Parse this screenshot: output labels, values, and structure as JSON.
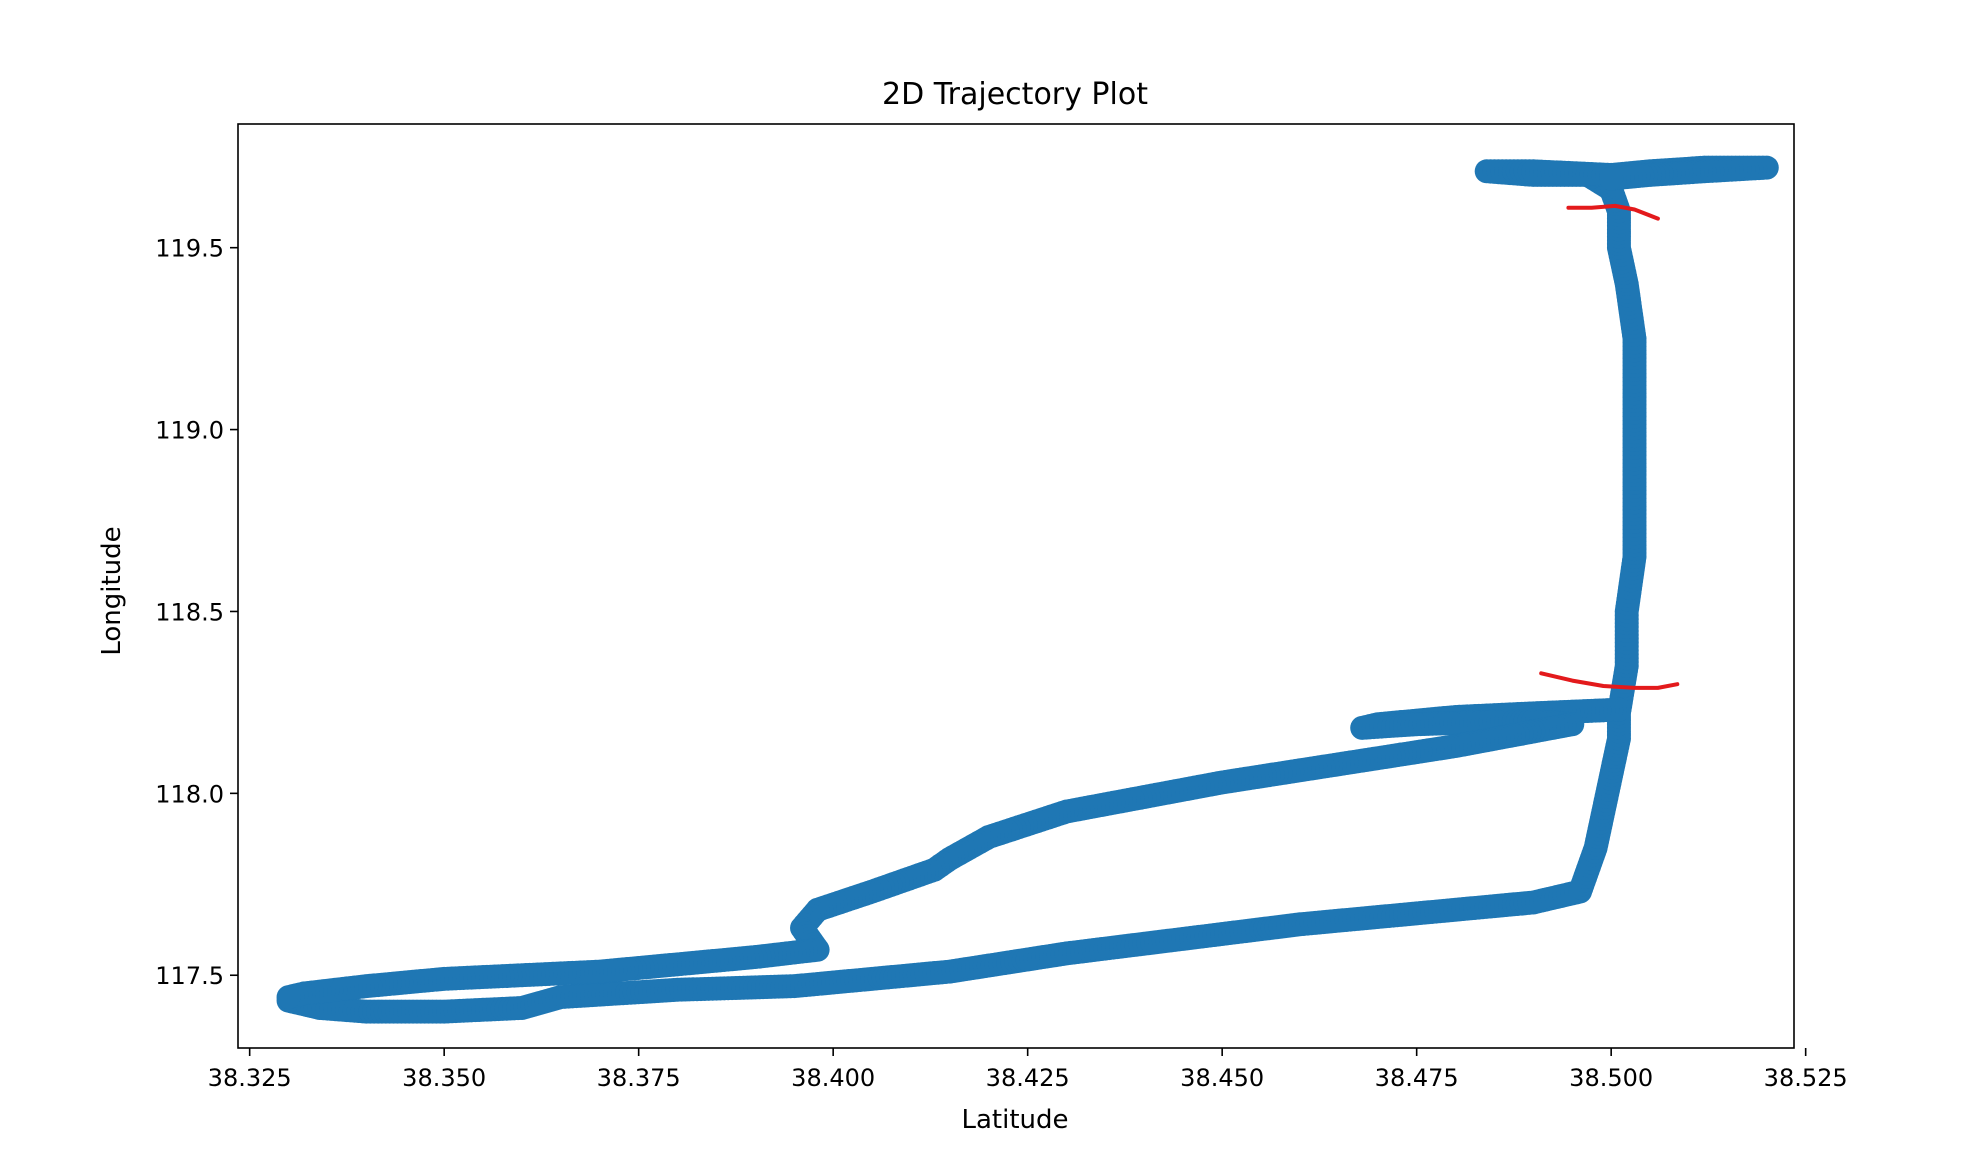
{
  "chart_data": {
    "type": "scatter",
    "title": "2D Trajectory Plot",
    "xlabel": "Latitude",
    "ylabel": "Longitude",
    "xlim": [
      38.3235,
      38.5235
    ],
    "ylim": [
      117.3,
      119.84
    ],
    "x_ticks": [
      "38.325",
      "38.350",
      "38.375",
      "38.400",
      "38.425",
      "38.450",
      "38.475",
      "38.500",
      "38.525"
    ],
    "y_ticks": [
      "117.5",
      "118.0",
      "118.5",
      "119.0",
      "119.5"
    ],
    "grid": false,
    "marker_color": "#1f77b4",
    "annotation_color": "#e31a1c",
    "series": [
      {
        "points": [
          [
            38.33,
            117.43
          ],
          [
            38.334,
            117.41
          ],
          [
            38.34,
            117.4
          ],
          [
            38.35,
            117.4
          ],
          [
            38.36,
            117.41
          ],
          [
            38.365,
            117.44
          ],
          [
            38.38,
            117.46
          ],
          [
            38.395,
            117.47
          ],
          [
            38.4,
            117.48
          ],
          [
            38.415,
            117.51
          ],
          [
            38.43,
            117.56
          ],
          [
            38.445,
            117.6
          ],
          [
            38.46,
            117.64
          ],
          [
            38.475,
            117.67
          ],
          [
            38.49,
            117.7
          ],
          [
            38.496,
            117.73
          ],
          [
            38.498,
            117.85
          ],
          [
            38.499,
            117.95
          ],
          [
            38.5,
            118.05
          ],
          [
            38.501,
            118.15
          ],
          [
            38.501,
            118.22
          ],
          [
            38.502,
            118.35
          ],
          [
            38.502,
            118.5
          ],
          [
            38.503,
            118.65
          ],
          [
            38.503,
            118.8
          ],
          [
            38.503,
            118.95
          ],
          [
            38.503,
            119.1
          ],
          [
            38.503,
            119.25
          ],
          [
            38.502,
            119.4
          ],
          [
            38.501,
            119.5
          ],
          [
            38.501,
            119.6
          ],
          [
            38.5,
            119.66
          ],
          [
            38.497,
            119.7
          ],
          [
            38.49,
            119.7
          ],
          [
            38.484,
            119.71
          ],
          [
            38.49,
            119.71
          ],
          [
            38.5,
            119.7
          ],
          [
            38.505,
            119.71
          ],
          [
            38.512,
            119.72
          ],
          [
            38.52,
            119.72
          ],
          [
            38.512,
            119.71
          ],
          [
            38.505,
            119.7
          ],
          [
            38.5,
            119.69
          ]
        ]
      },
      {
        "points": [
          [
            38.501,
            118.23
          ],
          [
            38.49,
            118.22
          ],
          [
            38.48,
            118.21
          ],
          [
            38.47,
            118.19
          ],
          [
            38.468,
            118.18
          ],
          [
            38.475,
            118.19
          ],
          [
            38.49,
            118.2
          ],
          [
            38.495,
            118.19
          ],
          [
            38.48,
            118.13
          ],
          [
            38.465,
            118.08
          ],
          [
            38.45,
            118.03
          ],
          [
            38.44,
            117.99
          ],
          [
            38.43,
            117.95
          ],
          [
            38.42,
            117.88
          ],
          [
            38.415,
            117.82
          ],
          [
            38.413,
            117.79
          ],
          [
            38.405,
            117.73
          ],
          [
            38.398,
            117.68
          ],
          [
            38.396,
            117.63
          ],
          [
            38.397,
            117.6
          ],
          [
            38.398,
            117.57
          ],
          [
            38.39,
            117.55
          ],
          [
            38.38,
            117.53
          ],
          [
            38.37,
            117.51
          ],
          [
            38.36,
            117.5
          ],
          [
            38.35,
            117.49
          ],
          [
            38.34,
            117.47
          ],
          [
            38.332,
            117.45
          ],
          [
            38.33,
            117.44
          ]
        ]
      }
    ],
    "annotations": [
      {
        "type": "red-mark",
        "points": [
          [
            38.4945,
            119.61
          ],
          [
            38.4975,
            119.61
          ],
          [
            38.5005,
            119.615
          ],
          [
            38.503,
            119.605
          ],
          [
            38.506,
            119.58
          ]
        ]
      },
      {
        "type": "red-mark",
        "points": [
          [
            38.491,
            118.33
          ],
          [
            38.495,
            118.31
          ],
          [
            38.499,
            118.295
          ],
          [
            38.503,
            118.29
          ],
          [
            38.506,
            118.29
          ],
          [
            38.5085,
            118.3
          ]
        ]
      }
    ]
  }
}
